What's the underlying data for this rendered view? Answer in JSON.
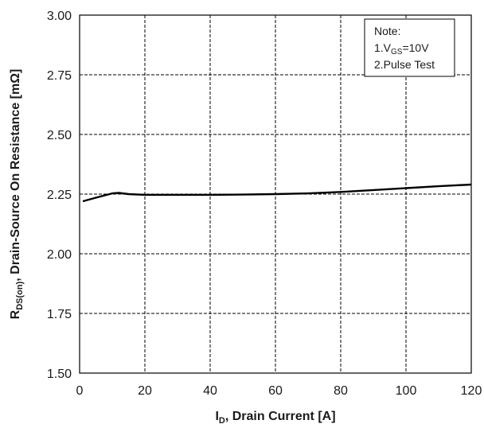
{
  "chart_data": {
    "type": "line",
    "xlabel": {
      "main": "I",
      "sub": "D",
      "rest": ", Drain Current [A]"
    },
    "ylabel": {
      "main": "R",
      "sub": "DS(on)",
      "rest": ", Drain-Source On Resistance [mΩ]"
    },
    "xlim": [
      0,
      120
    ],
    "ylim": [
      1.5,
      3.0
    ],
    "x_ticks": [
      "0",
      "20",
      "40",
      "60",
      "80",
      "100",
      "120"
    ],
    "y_ticks": [
      "1.50",
      "1.75",
      "2.00",
      "2.25",
      "2.50",
      "2.75",
      "3.00"
    ],
    "grid": true,
    "note": {
      "line1": "Note:",
      "line2_main": "1.V",
      "line2_sub": "GS",
      "line2_rest": "=10V",
      "line3": "2.Pulse Test",
      "position": "top-right"
    },
    "series": [
      {
        "x": [
          1,
          5,
          10,
          12,
          15,
          20,
          30,
          40,
          50,
          60,
          70,
          80,
          90,
          100,
          110,
          120
        ],
        "y": [
          2.22,
          2.235,
          2.253,
          2.255,
          2.25,
          2.247,
          2.247,
          2.247,
          2.248,
          2.25,
          2.253,
          2.259,
          2.267,
          2.275,
          2.283,
          2.29
        ],
        "color": "#000000"
      }
    ]
  }
}
